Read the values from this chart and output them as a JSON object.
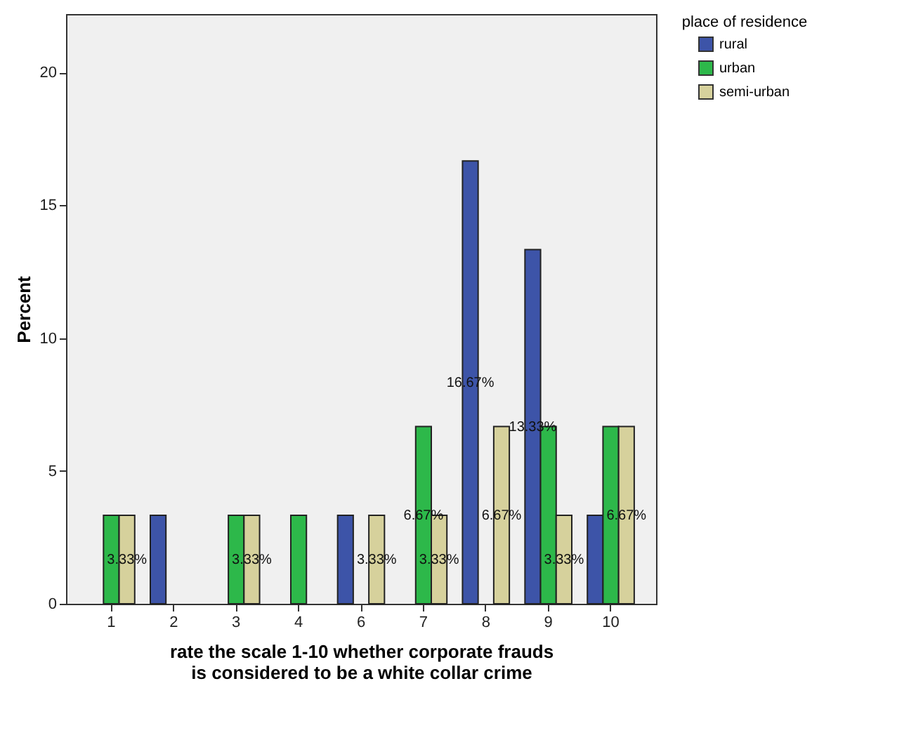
{
  "chart_data": {
    "type": "bar",
    "xlabel": "rate the scale 1-10 whether corporate frauds is considered to be a white collar crime",
    "ylabel": "Percent",
    "legend_title": "place of residence",
    "legend": "top right",
    "categories": [
      "1",
      "2",
      "3",
      "4",
      "6",
      "7",
      "8",
      "9",
      "10"
    ],
    "series": [
      {
        "name": "rural",
        "color": "#3d54a8",
        "values": [
          null,
          3.33,
          null,
          null,
          3.33,
          null,
          16.67,
          13.33,
          3.33
        ],
        "value_labels": [
          null,
          null,
          null,
          null,
          null,
          null,
          "16.67%",
          "13.33%",
          null
        ]
      },
      {
        "name": "urban",
        "color": "#2db84a",
        "values": [
          3.33,
          null,
          3.33,
          3.33,
          null,
          6.67,
          null,
          6.67,
          6.67
        ],
        "value_labels": [
          null,
          null,
          null,
          null,
          null,
          "6.67%",
          null,
          null,
          null
        ]
      },
      {
        "name": "semi-urban",
        "color": "#d6d19c",
        "values": [
          3.33,
          null,
          3.33,
          null,
          3.33,
          3.33,
          6.67,
          3.33,
          6.67
        ],
        "value_labels": [
          "3.33%",
          null,
          "3.33%",
          null,
          "3.33%",
          "3.33%",
          "6.67%",
          "3.33%",
          "6.67%"
        ]
      }
    ],
    "ylim": [
      0,
      22.2
    ],
    "yticks": [
      0,
      5,
      10,
      15,
      20
    ],
    "grid": false
  }
}
